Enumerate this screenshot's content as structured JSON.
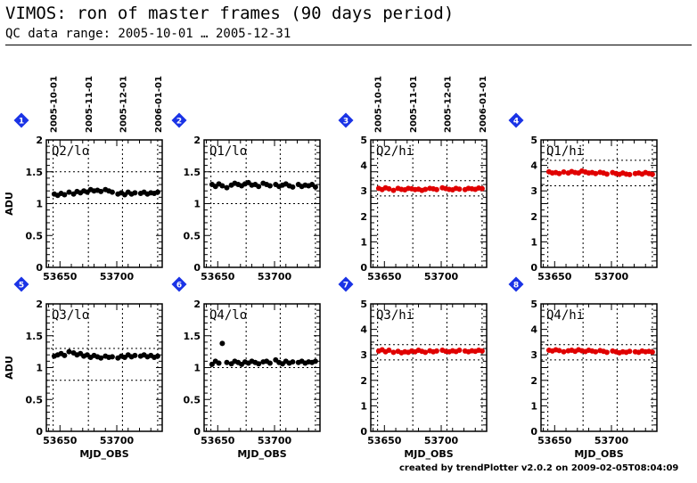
{
  "title": "VIMOS: ron of master frames (90 days period)",
  "subtitle": "QC data range: 2005-10-01 … 2005-12-31",
  "footer": "created by trendPlotter v2.0.2 on 2009-02-05T08:04:09",
  "chart_data": [
    {
      "type": "scatter",
      "panel": "1",
      "label": "Q2/lo",
      "xlabel": "",
      "ylabel": "ADU",
      "ylim": [
        0,
        2
      ],
      "yticks": [
        "0",
        "0.5",
        "1",
        "1.5",
        "2"
      ],
      "xlim": [
        53638,
        53740
      ],
      "xticks": [
        "53650",
        "53700"
      ],
      "date_ticks": [
        "2005-10-01",
        "2005-11-01",
        "2005-12-01",
        "2006-01-01"
      ],
      "color": "#000000",
      "ref_lines": [
        1.0,
        1.5
      ],
      "series": [
        {
          "x": [
            53645,
            53648,
            53651,
            53654,
            53658,
            53662,
            53665,
            53668,
            53671,
            53674,
            53677,
            53680,
            53683,
            53686,
            53690,
            53693,
            53696,
            53701,
            53704,
            53707,
            53710,
            53713,
            53716,
            53721,
            53724,
            53727,
            53730,
            53733,
            53736
          ],
          "y": [
            1.15,
            1.13,
            1.16,
            1.14,
            1.18,
            1.15,
            1.19,
            1.17,
            1.2,
            1.18,
            1.22,
            1.2,
            1.21,
            1.19,
            1.22,
            1.2,
            1.18,
            1.15,
            1.17,
            1.14,
            1.18,
            1.15,
            1.17,
            1.16,
            1.18,
            1.15,
            1.17,
            1.16,
            1.18
          ]
        }
      ]
    },
    {
      "type": "scatter",
      "panel": "2",
      "label": "Q1/lo",
      "xlabel": "",
      "ylabel": "",
      "ylim": [
        0,
        2
      ],
      "yticks": [
        "0",
        "0.5",
        "1",
        "1.5",
        "2"
      ],
      "xlim": [
        53638,
        53740
      ],
      "xticks": [
        "53650",
        "53700"
      ],
      "date_ticks": [],
      "color": "#000000",
      "ref_lines": [
        1.0,
        1.5
      ],
      "series": [
        {
          "x": [
            53645,
            53648,
            53651,
            53654,
            53658,
            53662,
            53665,
            53668,
            53671,
            53674,
            53677,
            53680,
            53683,
            53686,
            53690,
            53693,
            53696,
            53701,
            53704,
            53707,
            53710,
            53713,
            53716,
            53721,
            53724,
            53727,
            53730,
            53733,
            53736
          ],
          "y": [
            1.3,
            1.27,
            1.31,
            1.28,
            1.25,
            1.29,
            1.32,
            1.3,
            1.28,
            1.31,
            1.33,
            1.29,
            1.3,
            1.27,
            1.32,
            1.3,
            1.28,
            1.3,
            1.27,
            1.29,
            1.31,
            1.28,
            1.26,
            1.3,
            1.27,
            1.29,
            1.28,
            1.3,
            1.26
          ]
        }
      ]
    },
    {
      "type": "scatter",
      "panel": "3",
      "label": "Q2/hi",
      "xlabel": "",
      "ylabel": "",
      "ylim": [
        0,
        5
      ],
      "yticks": [
        "0",
        "1",
        "2",
        "3",
        "4",
        "5"
      ],
      "xlim": [
        53638,
        53740
      ],
      "xticks": [
        "53650",
        "53700"
      ],
      "date_ticks": [
        "2005-10-01",
        "2005-11-01",
        "2005-12-01",
        "2006-01-01"
      ],
      "color": "#e00000",
      "ref_lines": [
        2.8,
        3.4
      ],
      "series": [
        {
          "x": [
            53645,
            53648,
            53651,
            53654,
            53658,
            53662,
            53665,
            53668,
            53671,
            53674,
            53677,
            53680,
            53683,
            53686,
            53690,
            53693,
            53696,
            53701,
            53704,
            53707,
            53710,
            53713,
            53716,
            53721,
            53724,
            53727,
            53730,
            53733,
            53736
          ],
          "y": [
            3.1,
            3.05,
            3.12,
            3.08,
            3.02,
            3.1,
            3.06,
            3.04,
            3.1,
            3.08,
            3.05,
            3.07,
            3.02,
            3.06,
            3.1,
            3.08,
            3.05,
            3.12,
            3.09,
            3.06,
            3.04,
            3.1,
            3.07,
            3.05,
            3.1,
            3.08,
            3.06,
            3.11,
            3.09
          ]
        }
      ]
    },
    {
      "type": "scatter",
      "panel": "4",
      "label": "Q1/hi",
      "xlabel": "",
      "ylabel": "",
      "ylim": [
        0,
        5
      ],
      "yticks": [
        "0",
        "1",
        "2",
        "3",
        "4",
        "5"
      ],
      "xlim": [
        53638,
        53740
      ],
      "xticks": [
        "53650",
        "53700"
      ],
      "date_ticks": [],
      "color": "#e00000",
      "ref_lines": [
        3.2,
        4.2
      ],
      "series": [
        {
          "x": [
            53645,
            53648,
            53651,
            53654,
            53658,
            53662,
            53665,
            53668,
            53671,
            53674,
            53677,
            53680,
            53683,
            53686,
            53690,
            53693,
            53696,
            53701,
            53704,
            53707,
            53710,
            53713,
            53716,
            53721,
            53724,
            53727,
            53730,
            53733,
            53736
          ],
          "y": [
            3.75,
            3.7,
            3.72,
            3.68,
            3.74,
            3.7,
            3.76,
            3.72,
            3.7,
            3.78,
            3.74,
            3.7,
            3.72,
            3.68,
            3.73,
            3.7,
            3.66,
            3.72,
            3.68,
            3.65,
            3.7,
            3.66,
            3.64,
            3.68,
            3.7,
            3.66,
            3.72,
            3.68,
            3.65
          ]
        }
      ]
    },
    {
      "type": "scatter",
      "panel": "5",
      "label": "Q3/lo",
      "xlabel": "MJD_OBS",
      "ylabel": "ADU",
      "ylim": [
        0,
        2
      ],
      "yticks": [
        "0",
        "0.5",
        "1",
        "1.5",
        "2"
      ],
      "xlim": [
        53638,
        53740
      ],
      "xticks": [
        "53650",
        "53700"
      ],
      "date_ticks": [],
      "color": "#000000",
      "ref_lines": [
        0.8,
        1.3
      ],
      "series": [
        {
          "x": [
            53645,
            53648,
            53651,
            53654,
            53658,
            53662,
            53665,
            53668,
            53671,
            53674,
            53677,
            53680,
            53683,
            53686,
            53690,
            53693,
            53696,
            53701,
            53704,
            53707,
            53710,
            53713,
            53716,
            53721,
            53724,
            53727,
            53730,
            53733,
            53736
          ],
          "y": [
            1.18,
            1.2,
            1.22,
            1.19,
            1.25,
            1.23,
            1.2,
            1.22,
            1.18,
            1.2,
            1.16,
            1.19,
            1.17,
            1.15,
            1.18,
            1.16,
            1.17,
            1.15,
            1.18,
            1.16,
            1.2,
            1.17,
            1.19,
            1.18,
            1.2,
            1.17,
            1.19,
            1.16,
            1.18
          ]
        }
      ]
    },
    {
      "type": "scatter",
      "panel": "6",
      "label": "Q4/lo",
      "xlabel": "MJD_OBS",
      "ylabel": "",
      "ylim": [
        0,
        2
      ],
      "yticks": [
        "0",
        "0.5",
        "1",
        "1.5",
        "2"
      ],
      "xlim": [
        53638,
        53740
      ],
      "xticks": [
        "53650",
        "53700"
      ],
      "date_ticks": [],
      "color": "#000000",
      "ref_lines": [
        1.0
      ],
      "series": [
        {
          "x": [
            53645,
            53648,
            53651,
            53654,
            53658,
            53662,
            53665,
            53668,
            53671,
            53674,
            53677,
            53680,
            53683,
            53686,
            53690,
            53693,
            53696,
            53701,
            53704,
            53707,
            53710,
            53713,
            53716,
            53721,
            53724,
            53727,
            53730,
            53733,
            53736
          ],
          "y": [
            1.05,
            1.1,
            1.07,
            1.38,
            1.08,
            1.06,
            1.1,
            1.08,
            1.05,
            1.09,
            1.07,
            1.1,
            1.08,
            1.06,
            1.09,
            1.1,
            1.07,
            1.12,
            1.08,
            1.06,
            1.1,
            1.07,
            1.09,
            1.08,
            1.1,
            1.07,
            1.09,
            1.08,
            1.1
          ]
        }
      ]
    },
    {
      "type": "scatter",
      "panel": "7",
      "label": "Q3/hi",
      "xlabel": "MJD_OBS",
      "ylabel": "",
      "ylim": [
        0,
        5
      ],
      "yticks": [
        "0",
        "1",
        "2",
        "3",
        "4",
        "5"
      ],
      "xlim": [
        53638,
        53740
      ],
      "xticks": [
        "53650",
        "53700"
      ],
      "date_ticks": [],
      "color": "#e00000",
      "ref_lines": [
        2.8,
        3.4
      ],
      "series": [
        {
          "x": [
            53645,
            53648,
            53651,
            53654,
            53658,
            53662,
            53665,
            53668,
            53671,
            53674,
            53677,
            53680,
            53683,
            53686,
            53690,
            53693,
            53696,
            53701,
            53704,
            53707,
            53710,
            53713,
            53716,
            53721,
            53724,
            53727,
            53730,
            53733,
            53736
          ],
          "y": [
            3.15,
            3.2,
            3.12,
            3.18,
            3.1,
            3.14,
            3.08,
            3.12,
            3.1,
            3.15,
            3.12,
            3.18,
            3.14,
            3.1,
            3.16,
            3.12,
            3.15,
            3.18,
            3.14,
            3.12,
            3.16,
            3.13,
            3.18,
            3.15,
            3.12,
            3.16,
            3.14,
            3.18,
            3.15
          ]
        }
      ]
    },
    {
      "type": "scatter",
      "panel": "8",
      "label": "Q4/hi",
      "xlabel": "MJD_OBS",
      "ylabel": "",
      "ylim": [
        0,
        5
      ],
      "yticks": [
        "0",
        "1",
        "2",
        "3",
        "4",
        "5"
      ],
      "xlim": [
        53638,
        53740
      ],
      "xticks": [
        "53650",
        "53700"
      ],
      "date_ticks": [],
      "color": "#e00000",
      "ref_lines": [
        2.8,
        3.4
      ],
      "series": [
        {
          "x": [
            53645,
            53648,
            53651,
            53654,
            53658,
            53662,
            53665,
            53668,
            53671,
            53674,
            53677,
            53680,
            53683,
            53686,
            53690,
            53693,
            53696,
            53701,
            53704,
            53707,
            53710,
            53713,
            53716,
            53721,
            53724,
            53727,
            53730,
            53733,
            53736
          ],
          "y": [
            3.18,
            3.15,
            3.2,
            3.17,
            3.12,
            3.16,
            3.18,
            3.14,
            3.2,
            3.16,
            3.13,
            3.18,
            3.15,
            3.12,
            3.17,
            3.14,
            3.1,
            3.15,
            3.12,
            3.08,
            3.12,
            3.1,
            3.14,
            3.12,
            3.1,
            3.15,
            3.12,
            3.14,
            3.11
          ]
        }
      ]
    }
  ]
}
